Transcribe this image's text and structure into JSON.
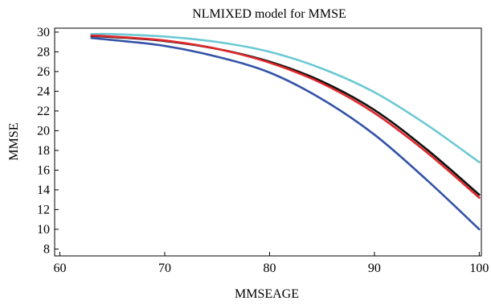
{
  "chart_data": {
    "type": "line",
    "title": "NLMIXED model for MMSE",
    "xlabel": "MMSEAGE",
    "ylabel": "MMSE",
    "xlim": [
      59.5,
      100.2
    ],
    "ylim": [
      7.3,
      30.4
    ],
    "xticks": [
      60,
      70,
      80,
      90,
      100
    ],
    "yticks": [
      8,
      10,
      12,
      14,
      16,
      18,
      20,
      22,
      24,
      26,
      28,
      30
    ],
    "grid": false,
    "series": [
      {
        "color": "#6cc9d3",
        "x": [
          63,
          65,
          70,
          75,
          80,
          85,
          90,
          95,
          100
        ],
        "y": [
          29.8,
          29.8,
          29.55,
          29.0,
          28.0,
          26.3,
          23.9,
          20.6,
          16.8
        ]
      },
      {
        "color": "#111111",
        "x": [
          63,
          65,
          70,
          75,
          80,
          85,
          90,
          95,
          100
        ],
        "y": [
          29.6,
          29.5,
          29.1,
          28.3,
          27.0,
          25.0,
          22.1,
          18.1,
          13.5
        ]
      },
      {
        "color": "#e0282c",
        "x": [
          63,
          65,
          70,
          75,
          80,
          85,
          90,
          95,
          100
        ],
        "y": [
          29.65,
          29.55,
          29.15,
          28.3,
          26.9,
          24.8,
          21.8,
          17.8,
          13.2
        ]
      },
      {
        "color": "#3453a6",
        "x": [
          63,
          65,
          70,
          75,
          80,
          85,
          90,
          95,
          100
        ],
        "y": [
          29.4,
          29.2,
          28.6,
          27.5,
          25.9,
          23.2,
          19.6,
          15.0,
          10.0
        ]
      }
    ]
  }
}
